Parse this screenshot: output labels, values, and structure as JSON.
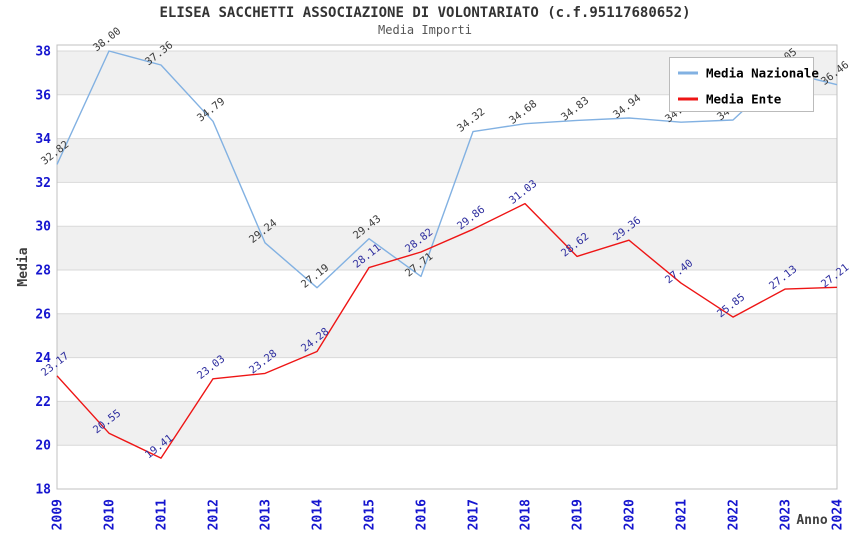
{
  "title": "ELISEA SACCHETTI ASSOCIAZIONE DI VOLONTARIATO (c.f.95117680652)",
  "subtitle": "Media Importi",
  "axes": {
    "y_label": "Media",
    "x_label": "Anno",
    "y_ticks": [
      18,
      20,
      22,
      24,
      26,
      28,
      30,
      32,
      34,
      36,
      38
    ],
    "y_min": 18,
    "y_max": 38
  },
  "legend": {
    "position": "top-right",
    "items": [
      {
        "label": "Media Nazionale",
        "color": "#82b1e2"
      },
      {
        "label": "Media Ente",
        "color": "#ee1515"
      }
    ]
  },
  "colors": {
    "nazionale_line": "#82b1e2",
    "ente_line": "#ee1515",
    "nazionale_point_label": "#3a3a3a",
    "ente_point_label": "#2c2c9e",
    "tick_label": "#1515cf",
    "axis_title": "#404040",
    "band_gray": "#f0f0f0",
    "grid": "#d9d9d9",
    "plot_border": "#c0c0c0"
  },
  "chart_data": {
    "type": "line",
    "title": "Media Importi",
    "suptitle": "ELISEA SACCHETTI ASSOCIAZIONE DI VOLONTARIATO (c.f.95117680652)",
    "xlabel": "Anno",
    "ylabel": "Media",
    "ylim": [
      18,
      38
    ],
    "grid": "horizontal-bands-alternating",
    "legend_position": "top-right",
    "categories": [
      "2009",
      "2010",
      "2011",
      "2012",
      "2013",
      "2014",
      "2015",
      "2016",
      "2017",
      "2018",
      "2019",
      "2020",
      "2021",
      "2022",
      "2023",
      "2024"
    ],
    "series": [
      {
        "name": "Media Nazionale",
        "color": "#82b1e2",
        "label_color": "#3a3a3a",
        "values": [
          32.82,
          38.0,
          37.36,
          34.79,
          29.24,
          27.19,
          29.43,
          27.71,
          34.32,
          34.68,
          34.83,
          34.94,
          34.75,
          34.85,
          37.05,
          36.46
        ]
      },
      {
        "name": "Media Ente",
        "color": "#ee1515",
        "label_color": "#2c2c9e",
        "values": [
          23.17,
          20.55,
          19.41,
          23.03,
          23.28,
          24.28,
          28.11,
          28.82,
          29.86,
          31.03,
          28.62,
          29.36,
          27.4,
          25.85,
          27.13,
          27.21
        ]
      }
    ]
  }
}
